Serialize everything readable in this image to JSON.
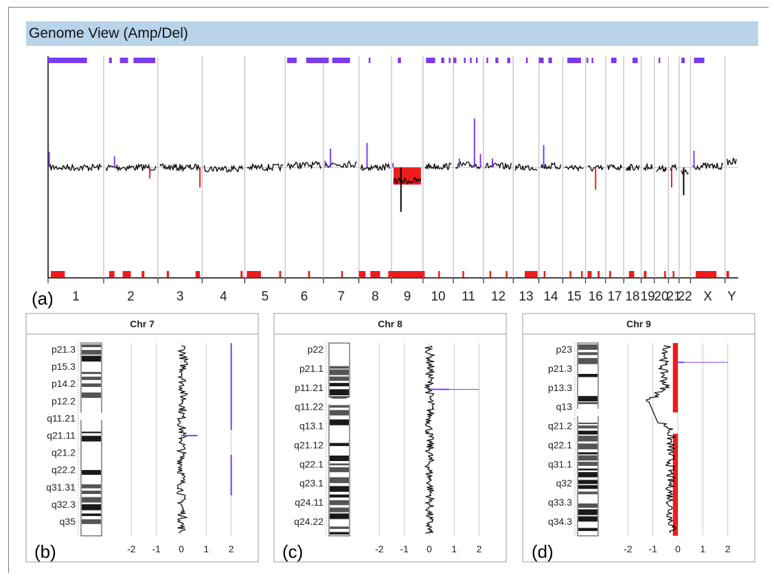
{
  "header": {
    "title": "Genome View (Amp/Del)"
  },
  "panel_labels": {
    "a": "(a)",
    "b": "(b)",
    "c": "(c)",
    "d": "(d)"
  },
  "colors": {
    "header_bg": "#b8d3ea",
    "amplification": "#7a3cf0",
    "deletion": "#ee1c1c",
    "profile": "#000000",
    "gridline": "#c8c8c8"
  },
  "chart_data": [
    {
      "type": "line",
      "title": "Genome View (Amp/Del)",
      "categories": [
        "1",
        "2",
        "3",
        "4",
        "5",
        "6",
        "7",
        "8",
        "9",
        "10",
        "11",
        "12",
        "13",
        "14",
        "15",
        "16",
        "17",
        "18",
        "19",
        "20",
        "21",
        "22",
        "X",
        "Y"
      ],
      "chromosome_relative_size": [
        249,
        243,
        198,
        191,
        181,
        171,
        159,
        146,
        141,
        136,
        135,
        133,
        115,
        107,
        102,
        90,
        81,
        78,
        59,
        63,
        48,
        51,
        155,
        59
      ],
      "ylim": [
        -1,
        1
      ],
      "grid": true,
      "baseline": 0,
      "series": [
        {
          "values": [
            0.0,
            0.0,
            0.0,
            -0.01,
            0.0,
            0.02,
            0.03,
            0.0,
            -0.12,
            0.01,
            0.02,
            0.01,
            0.0,
            0.01,
            0.0,
            -0.01,
            0.0,
            0.0,
            0.0,
            -0.01,
            0.0,
            -0.05,
            0.01,
            0.05
          ]
        }
      ],
      "amp_spikes": [
        {
          "chr": "1",
          "pos": 0.02,
          "value": 0.14
        },
        {
          "chr": "2",
          "pos": 0.2,
          "value": 0.1
        },
        {
          "chr": "7",
          "pos": 0.05,
          "value": 0.06
        },
        {
          "chr": "7",
          "pos": 0.2,
          "value": 0.17
        },
        {
          "chr": "8",
          "pos": 0.25,
          "value": 0.22
        },
        {
          "chr": "9",
          "pos": 0.05,
          "value": 0.04
        },
        {
          "chr": "11",
          "pos": 0.7,
          "value": 0.44
        },
        {
          "chr": "11",
          "pos": 0.2,
          "value": 0.08
        },
        {
          "chr": "11",
          "pos": 0.9,
          "value": 0.12
        },
        {
          "chr": "12",
          "pos": 0.3,
          "value": 0.08
        },
        {
          "chr": "14",
          "pos": 0.2,
          "value": 0.2
        },
        {
          "chr": "X",
          "pos": 0.1,
          "value": 0.15
        }
      ],
      "del_spikes": [
        {
          "chr": "2",
          "pos": 0.85,
          "value": -0.1
        },
        {
          "chr": "3",
          "pos": 0.95,
          "value": -0.18
        },
        {
          "chr": "9",
          "pos": 0.3,
          "value": -0.4
        },
        {
          "chr": "16",
          "pos": 0.5,
          "value": -0.2
        },
        {
          "chr": "21",
          "pos": 0.3,
          "value": -0.18
        },
        {
          "chr": "22",
          "pos": 0.4,
          "value": -0.25
        }
      ],
      "amp_regions_top": [
        [
          "1",
          0.0,
          0.7
        ],
        [
          "2",
          0.1,
          0.15
        ],
        [
          "2",
          0.3,
          0.45
        ],
        [
          "2",
          0.55,
          0.95
        ],
        [
          "6",
          0.05,
          0.3
        ],
        [
          "6",
          0.55,
          1.0
        ],
        [
          "7",
          0.0,
          0.15
        ],
        [
          "7",
          0.25,
          0.75
        ],
        [
          "8",
          0.3,
          0.35
        ],
        [
          "9",
          0.2,
          0.3
        ],
        [
          "10",
          0.1,
          0.4
        ],
        [
          "10",
          0.6,
          0.7
        ],
        [
          "10",
          0.85,
          0.9
        ],
        [
          "11",
          0.0,
          0.1
        ],
        [
          "11",
          0.35,
          0.4
        ],
        [
          "11",
          0.55,
          0.6
        ],
        [
          "11",
          0.75,
          0.8
        ],
        [
          "12",
          0.1,
          0.15
        ],
        [
          "12",
          0.4,
          0.5
        ],
        [
          "12",
          0.8,
          0.9
        ],
        [
          "13",
          0.5,
          0.55
        ],
        [
          "14",
          0.0,
          0.2
        ],
        [
          "14",
          0.4,
          0.55
        ],
        [
          "15",
          0.2,
          0.8
        ],
        [
          "16",
          0.05,
          0.1
        ],
        [
          "16",
          0.3,
          0.35
        ],
        [
          "17",
          0.3,
          0.6
        ],
        [
          "18",
          0.5,
          0.8
        ],
        [
          "20",
          0.3,
          0.4
        ],
        [
          "22",
          0.2,
          0.5
        ],
        [
          "X",
          0.1,
          0.4
        ]
      ],
      "del_regions_bottom": [
        [
          "1",
          0.05,
          0.3
        ],
        [
          "2",
          0.1,
          0.2
        ],
        [
          "2",
          0.35,
          0.5
        ],
        [
          "2",
          0.7,
          0.75
        ],
        [
          "3",
          0.2,
          0.25
        ],
        [
          "3",
          0.85,
          0.95
        ],
        [
          "4",
          0.9,
          0.95
        ],
        [
          "5",
          0.05,
          0.4
        ],
        [
          "5",
          0.85,
          0.9
        ],
        [
          "6",
          0.6,
          0.65
        ],
        [
          "7",
          0.5,
          0.55
        ],
        [
          "8",
          0.0,
          0.2
        ],
        [
          "8",
          0.35,
          0.65
        ],
        [
          "8",
          0.9,
          1.0
        ],
        [
          "9",
          0.0,
          1.0
        ],
        [
          "10",
          0.0,
          0.05
        ],
        [
          "10",
          0.5,
          0.55
        ],
        [
          "11",
          0.3,
          0.35
        ],
        [
          "12",
          0.2,
          0.25
        ],
        [
          "12",
          0.75,
          0.8
        ],
        [
          "13",
          0.45,
          0.95
        ],
        [
          "14",
          0.2,
          0.25
        ],
        [
          "15",
          0.3,
          0.35
        ],
        [
          "15",
          0.8,
          0.85
        ],
        [
          "16",
          0.1,
          0.3
        ],
        [
          "16",
          0.6,
          0.7
        ],
        [
          "17",
          0.2,
          0.3
        ],
        [
          "18",
          0.3,
          0.6
        ],
        [
          "19",
          0.2,
          0.4
        ],
        [
          "20",
          0.7,
          0.8
        ],
        [
          "21",
          0.4,
          0.5
        ],
        [
          "X",
          0.15,
          0.75
        ],
        [
          "Y",
          0.1,
          0.3
        ]
      ]
    },
    {
      "type": "line",
      "title": "Chr 7",
      "xlim": [
        -3,
        3
      ],
      "x_ticks": [
        "-2",
        "-1",
        "0",
        "1",
        "2"
      ],
      "x_tick_values": [
        -2,
        -1,
        0,
        1,
        2
      ],
      "band_labels": [
        "p21.3",
        "p15.3",
        "p14.2",
        "p12.2",
        "q11.21",
        "q21.11",
        "q21.2",
        "q22.2",
        "q31.31",
        "q32.3",
        "q35"
      ],
      "centromere_fraction": 0.38,
      "profile_mean": [
        0.05,
        0.1,
        0.05,
        0.1,
        0.0,
        0.05,
        0.0,
        0.02,
        0.0,
        0.05,
        0.0
      ],
      "amp_markers": [
        {
          "from": 0.0,
          "to": 0.45,
          "value": 2
        },
        {
          "from": 0.58,
          "to": 0.79,
          "value": 2
        },
        {
          "at": 0.48,
          "value": 0.65
        }
      ]
    },
    {
      "type": "line",
      "title": "Chr 8",
      "xlim": [
        -3,
        3
      ],
      "x_ticks": [
        "-2",
        "-1",
        "0",
        "1",
        "2"
      ],
      "x_tick_values": [
        -2,
        -1,
        0,
        1,
        2
      ],
      "band_labels": [
        "p22",
        "p21.1",
        "p11.21",
        "q11.22",
        "q13.1",
        "q21.12",
        "q22.1",
        "q23.1",
        "q24.11",
        "q24.22"
      ],
      "centromere_fraction": 0.3,
      "profile_mean": [
        0.0,
        0.05,
        0.0,
        0.05,
        0.0,
        0.02,
        0.0,
        0.05,
        0.0,
        0.0
      ],
      "amp_markers": [
        {
          "at": 0.24,
          "value": 0.8
        },
        {
          "at": 0.24,
          "value": 2
        }
      ]
    },
    {
      "type": "area",
      "title": "Chr 9",
      "xlim": [
        -3,
        3
      ],
      "x_ticks": [
        "-2",
        "-1",
        "0",
        "1",
        "2"
      ],
      "x_tick_values": [
        -2,
        -1,
        0,
        1,
        2
      ],
      "band_labels": [
        "p23",
        "p21.3",
        "p13.3",
        "q13",
        "q21.2",
        "q22.1",
        "q31.1",
        "q32",
        "q33.3",
        "q34.3"
      ],
      "centromere_fraction": 0.36,
      "deleted_ranges": [
        [
          0.0,
          0.36
        ],
        [
          0.47,
          1.0
        ]
      ],
      "deleted_level": -0.2,
      "profile_mean": [
        -0.4,
        -0.6,
        -0.5,
        -1.5,
        -0.3,
        -0.3,
        -0.3,
        -0.3,
        -0.3,
        -0.2
      ],
      "amp_markers": [
        {
          "at": 0.1,
          "value": 0.25
        },
        {
          "at": 0.1,
          "value": 2
        }
      ]
    }
  ]
}
